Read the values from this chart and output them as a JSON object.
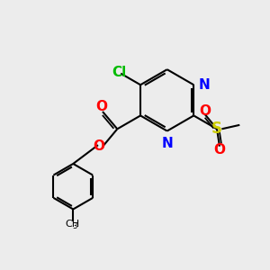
{
  "background_color": "#ececec",
  "bond_color": "#000000",
  "atom_colors": {
    "Cl": "#00bb00",
    "N": "#0000ff",
    "O": "#ff0000",
    "S": "#cccc00",
    "C": "#000000"
  },
  "figsize": [
    3.0,
    3.0
  ],
  "dpi": 100
}
